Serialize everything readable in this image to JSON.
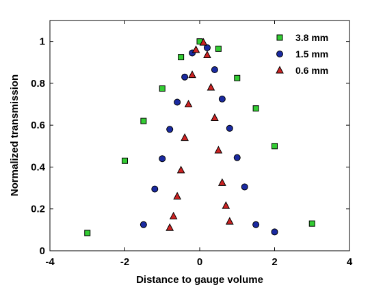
{
  "chart_data": {
    "type": "scatter",
    "xlabel": "Distance to gauge volume",
    "ylabel": "Normalized transmission",
    "xlim": [
      -4,
      4
    ],
    "ylim": [
      0,
      1.1
    ],
    "xticks": [
      -4,
      -2,
      0,
      2,
      4
    ],
    "yticks": [
      0,
      0.2,
      0.4,
      0.6,
      0.8,
      1
    ],
    "xtick_labels": [
      "-4",
      "-2",
      "0",
      "2",
      "4"
    ],
    "ytick_labels": [
      "0",
      "0.2",
      "0.4",
      "0.6",
      "0.8",
      "1"
    ],
    "grid": false,
    "legend_position": "top-right",
    "series": [
      {
        "name": "3.8 mm",
        "marker": "square",
        "color": "#33cc33",
        "points": [
          [
            -3.0,
            0.085
          ],
          [
            -2.0,
            0.43
          ],
          [
            -1.5,
            0.62
          ],
          [
            -1.0,
            0.775
          ],
          [
            -0.5,
            0.925
          ],
          [
            0.0,
            1.0
          ],
          [
            0.5,
            0.965
          ],
          [
            1.0,
            0.825
          ],
          [
            1.5,
            0.68
          ],
          [
            2.0,
            0.5
          ],
          [
            3.0,
            0.13
          ]
        ]
      },
      {
        "name": "1.5 mm",
        "marker": "circle",
        "color": "#1a2aa0",
        "points": [
          [
            -1.5,
            0.125
          ],
          [
            -1.2,
            0.295
          ],
          [
            -1.0,
            0.44
          ],
          [
            -0.8,
            0.58
          ],
          [
            -0.6,
            0.71
          ],
          [
            -0.4,
            0.83
          ],
          [
            -0.2,
            0.945
          ],
          [
            0.2,
            0.97
          ],
          [
            0.4,
            0.865
          ],
          [
            0.6,
            0.725
          ],
          [
            0.8,
            0.585
          ],
          [
            1.0,
            0.445
          ],
          [
            1.2,
            0.305
          ],
          [
            1.5,
            0.125
          ],
          [
            2.0,
            0.09
          ]
        ]
      },
      {
        "name": "0.6 mm",
        "marker": "triangle",
        "color": "#cc2222",
        "points": [
          [
            -0.8,
            0.11
          ],
          [
            -0.7,
            0.165
          ],
          [
            -0.6,
            0.26
          ],
          [
            -0.5,
            0.385
          ],
          [
            -0.4,
            0.54
          ],
          [
            -0.3,
            0.7
          ],
          [
            -0.2,
            0.84
          ],
          [
            -0.1,
            0.96
          ],
          [
            0.1,
            0.995
          ],
          [
            0.2,
            0.935
          ],
          [
            0.3,
            0.78
          ],
          [
            0.4,
            0.635
          ],
          [
            0.5,
            0.48
          ],
          [
            0.6,
            0.325
          ],
          [
            0.7,
            0.215
          ],
          [
            0.8,
            0.14
          ]
        ]
      }
    ]
  }
}
